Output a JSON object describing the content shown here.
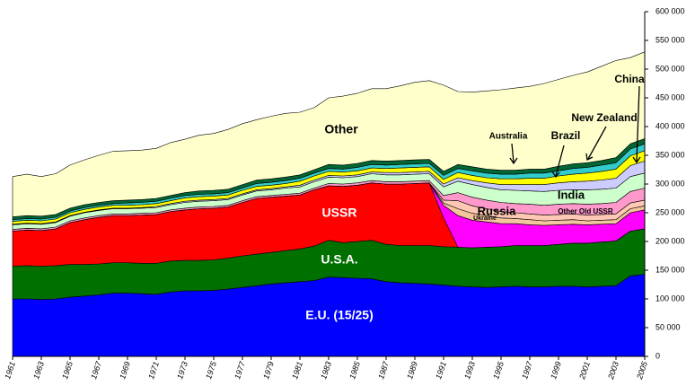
{
  "chart_data": {
    "type": "stacked_area",
    "x": [
      1961,
      1962,
      1963,
      1964,
      1965,
      1966,
      1967,
      1968,
      1969,
      1970,
      1971,
      1972,
      1973,
      1974,
      1975,
      1976,
      1977,
      1978,
      1979,
      1980,
      1981,
      1982,
      1983,
      1984,
      1985,
      1986,
      1987,
      1988,
      1989,
      1990,
      1991,
      1992,
      1993,
      1994,
      1995,
      1996,
      1997,
      1998,
      1999,
      2000,
      2001,
      2002,
      2003,
      2004,
      2005
    ],
    "xlim": [
      1961,
      2005
    ],
    "xticks": [
      1961,
      1963,
      1965,
      1967,
      1969,
      1971,
      1973,
      1975,
      1977,
      1979,
      1981,
      1983,
      1985,
      1987,
      1989,
      1991,
      1993,
      1995,
      1997,
      1999,
      2001,
      2003,
      2005
    ],
    "ylim": [
      0,
      600000
    ],
    "yticks": [
      0,
      {
        "value": 50000,
        "label": "50 000"
      },
      {
        "value": 100000,
        "label": "100 000"
      },
      {
        "value": 150000,
        "label": "150 000"
      },
      {
        "value": 200000,
        "label": "200 000"
      },
      {
        "value": 250000,
        "label": "250 000"
      },
      {
        "value": 300000,
        "label": "300 000"
      },
      {
        "value": 350000,
        "label": "350 000"
      },
      {
        "value": 400000,
        "label": "400 000"
      },
      {
        "value": 450000,
        "label": "450 000"
      },
      {
        "value": 500000,
        "label": "500 000"
      },
      {
        "value": 550000,
        "label": "550 000"
      },
      {
        "value": 600000,
        "label": "600 000"
      }
    ],
    "series": [
      {
        "name": "E.U. (15/25)",
        "color": "#0000ff",
        "values": [
          100000,
          100000,
          99000,
          100000,
          103000,
          105000,
          107000,
          110000,
          110000,
          109000,
          108000,
          112000,
          114000,
          114000,
          115000,
          117000,
          120000,
          123000,
          126000,
          128000,
          130000,
          132000,
          138000,
          137000,
          136000,
          135000,
          130000,
          128000,
          127000,
          126000,
          124000,
          122000,
          121000,
          120000,
          121000,
          122000,
          121000,
          121000,
          122000,
          122000,
          121000,
          122000,
          123000,
          140000,
          143000
        ]
      },
      {
        "name": "U.S.A.",
        "color": "#007000",
        "values": [
          57000,
          58000,
          58000,
          58000,
          57000,
          55000,
          54000,
          53000,
          53000,
          53000,
          54000,
          54000,
          53000,
          53000,
          53000,
          54000,
          55000,
          55000,
          55000,
          56000,
          57000,
          60000,
          64000,
          61000,
          64000,
          67000,
          65000,
          65000,
          66000,
          67000,
          67000,
          68000,
          68000,
          70000,
          70000,
          71000,
          72000,
          72000,
          73000,
          75000,
          76000,
          77000,
          78000,
          78000,
          79000
        ]
      },
      {
        "name": "USSR",
        "color": "#ff0000",
        "values": [
          61000,
          62000,
          62000,
          64000,
          73000,
          78000,
          81000,
          82000,
          82000,
          84000,
          85000,
          86000,
          88000,
          90000,
          90000,
          89000,
          93000,
          97000,
          96000,
          95000,
          94000,
          98000,
          95000,
          98000,
          98000,
          100000,
          105000,
          107000,
          108000,
          109000,
          50000,
          0,
          0,
          0,
          0,
          0,
          0,
          0,
          0,
          0,
          0,
          0,
          0,
          0,
          0
        ]
      },
      {
        "name": "Russia",
        "color": "#ff00ff",
        "values": [
          0,
          0,
          0,
          0,
          0,
          0,
          0,
          0,
          0,
          0,
          0,
          0,
          0,
          0,
          0,
          0,
          0,
          0,
          0,
          0,
          0,
          0,
          0,
          0,
          0,
          0,
          0,
          0,
          0,
          0,
          22000,
          55000,
          48000,
          44000,
          40000,
          38000,
          36000,
          35000,
          34000,
          33000,
          32000,
          31000,
          30000,
          32000,
          33000
        ]
      },
      {
        "name": "Ukraine",
        "color": "#f4c49c",
        "values": [
          0,
          0,
          0,
          0,
          0,
          0,
          0,
          0,
          0,
          0,
          0,
          0,
          0,
          0,
          0,
          0,
          0,
          0,
          0,
          0,
          0,
          0,
          0,
          0,
          0,
          0,
          0,
          0,
          0,
          0,
          4000,
          12000,
          12000,
          11000,
          10000,
          9000,
          9000,
          8000,
          8000,
          8000,
          7000,
          7000,
          7000,
          7000,
          7000
        ]
      },
      {
        "name": "Other Old USSR",
        "color": "#ffc8b4",
        "values": [
          0,
          0,
          0,
          0,
          0,
          0,
          0,
          0,
          0,
          0,
          0,
          0,
          0,
          0,
          0,
          0,
          0,
          0,
          0,
          0,
          0,
          0,
          0,
          0,
          0,
          0,
          0,
          0,
          0,
          0,
          5000,
          14000,
          13000,
          12000,
          11000,
          10000,
          10000,
          10000,
          10000,
          10000,
          10000,
          10000,
          10000,
          10000,
          10000
        ]
      },
      {
        "color": "#ff99cc",
        "values": [
          3000,
          3000,
          3000,
          3000,
          3000,
          3000,
          3000,
          3000,
          3000,
          3000,
          3000,
          3000,
          3000,
          3000,
          3000,
          3000,
          3000,
          3000,
          3000,
          3000,
          3000,
          3000,
          4000,
          4000,
          4000,
          4000,
          4000,
          4000,
          4000,
          4000,
          8000,
          14000,
          15000,
          15000,
          16000,
          16000,
          17000,
          17000,
          18000,
          18000,
          19000,
          19000,
          20000,
          20000,
          21000
        ]
      },
      {
        "name": "India",
        "color": "#ccffcc",
        "values": [
          8000,
          8000,
          8000,
          8000,
          8000,
          9000,
          9000,
          9000,
          9000,
          9000,
          9000,
          9000,
          10000,
          10000,
          10000,
          10000,
          10000,
          10000,
          10000,
          11000,
          11000,
          11000,
          11000,
          11000,
          11000,
          12000,
          12000,
          12000,
          12000,
          12000,
          15000,
          20000,
          22000,
          22000,
          22000,
          23000,
          23000,
          24000,
          24000,
          24000,
          25000,
          25000,
          25000,
          26000,
          26000
        ]
      },
      {
        "name": "China",
        "color": "#ccccff",
        "values": [
          1000,
          1000,
          1000,
          1000,
          1000,
          1000,
          1000,
          1000,
          1000,
          1000,
          2000,
          2000,
          2000,
          2000,
          2000,
          2000,
          2000,
          2000,
          2000,
          2000,
          3000,
          3000,
          3000,
          3000,
          3000,
          3000,
          4000,
          4000,
          4000,
          4000,
          5000,
          6000,
          7000,
          8000,
          9000,
          10000,
          11000,
          12000,
          13000,
          14000,
          15000,
          16000,
          17000,
          19000,
          21000
        ]
      },
      {
        "name": "Brazil",
        "color": "#ffff00",
        "values": [
          5000,
          5000,
          5000,
          5000,
          5000,
          5000,
          5000,
          5000,
          5000,
          5000,
          5000,
          5000,
          6000,
          6000,
          6000,
          6000,
          6000,
          6000,
          6000,
          6000,
          7000,
          7000,
          7000,
          7000,
          7000,
          7000,
          7000,
          8000,
          8000,
          8000,
          8000,
          9000,
          9000,
          9000,
          10000,
          10000,
          11000,
          11000,
          12000,
          13000,
          14000,
          15000,
          16000,
          17000,
          18000
        ]
      },
      {
        "name": "New Zealand",
        "color": "#33cccc",
        "values": [
          3000,
          3000,
          3000,
          3000,
          3000,
          3000,
          3000,
          3000,
          4000,
          4000,
          4000,
          4000,
          4000,
          4000,
          4000,
          4000,
          4000,
          5000,
          5000,
          5000,
          5000,
          5000,
          5000,
          5000,
          6000,
          6000,
          6000,
          6000,
          6000,
          6000,
          7000,
          7000,
          8000,
          8000,
          8000,
          8000,
          9000,
          9000,
          9000,
          10000,
          10000,
          11000,
          11000,
          12000,
          12000
        ]
      },
      {
        "name": "Australia",
        "color": "#006633",
        "values": [
          5000,
          5000,
          5000,
          5000,
          5000,
          5000,
          5000,
          5000,
          5000,
          5000,
          5000,
          5000,
          5000,
          6000,
          6000,
          6000,
          6000,
          6000,
          6000,
          6000,
          6000,
          6000,
          7000,
          7000,
          7000,
          7000,
          7000,
          7000,
          7000,
          7000,
          7000,
          7000,
          7000,
          7000,
          7000,
          7000,
          7000,
          7000,
          8000,
          8000,
          8000,
          8000,
          9000,
          9000,
          9000
        ]
      },
      {
        "name": "Other",
        "color": "#ffffcc",
        "values": [
          70000,
          72000,
          69000,
          71000,
          75000,
          78000,
          82000,
          86000,
          86000,
          86000,
          87000,
          92000,
          93000,
          97000,
          99000,
          104000,
          106000,
          105000,
          109000,
          111000,
          109000,
          108000,
          116000,
          120000,
          122000,
          125000,
          126000,
          130000,
          135000,
          137000,
          150000,
          127000,
          130000,
          136000,
          140000,
          143000,
          144000,
          149000,
          151000,
          154000,
          158000,
          164000,
          169000,
          150000,
          151000
        ]
      }
    ]
  }
}
